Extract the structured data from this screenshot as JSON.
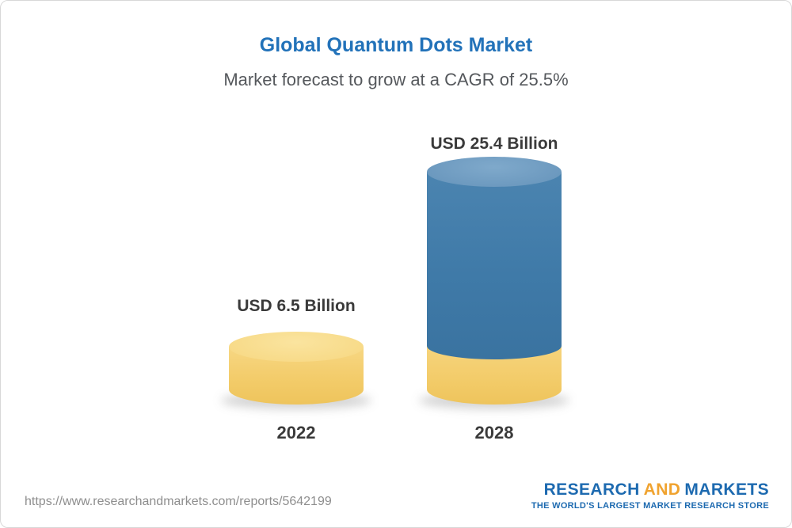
{
  "chart_data": {
    "type": "bar",
    "title": "Global Quantum Dots Market",
    "subtitle": "Market forecast to grow at a CAGR of 25.5%",
    "cagr_percent": 25.5,
    "unit": "USD Billion",
    "categories": [
      "2022",
      "2028"
    ],
    "values": [
      6.5,
      25.4
    ],
    "bars": [
      {
        "category": "2022",
        "value": 6.5,
        "label": "USD 6.5 Billion",
        "color": "#f3cc6a"
      },
      {
        "category": "2028",
        "value": 25.4,
        "label": "USD 25.4 Billion",
        "color": "#3f7aa8",
        "base_segment_color": "#f3cc6a"
      }
    ],
    "ylim": [
      0,
      28
    ],
    "grid": false,
    "legend": "none"
  },
  "footer": {
    "url": "https://www.researchandmarkets.com/reports/5642199",
    "logo": {
      "word1": "RESEARCH",
      "word2": "AND",
      "word3": "MARKETS",
      "tagline": "THE WORLD'S LARGEST MARKET RESEARCH STORE",
      "blue": "#1d6ab0",
      "gold": "#f0a32f"
    }
  },
  "colors": {
    "title": "#2272b9",
    "subtitle": "#55585c",
    "bar_label": "#3a3a3a",
    "yellow_body": "#f3cc6a",
    "yellow_cap": "#f8dc8e",
    "blue_body": "#3f7aa8",
    "blue_cap": "#6f9cc2",
    "card_border": "#d8d8d8"
  }
}
